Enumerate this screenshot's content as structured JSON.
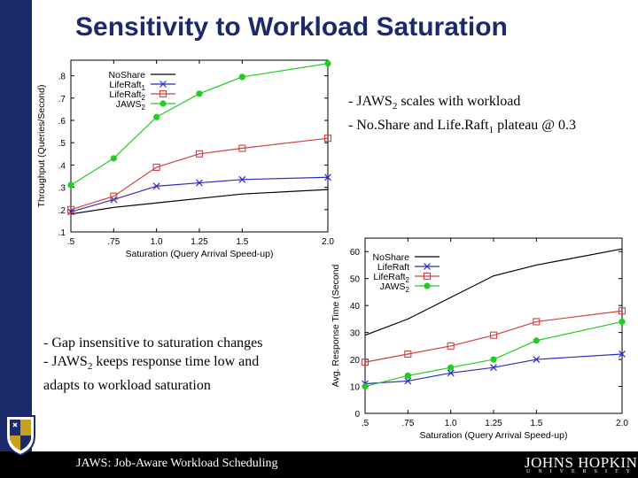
{
  "slide": {
    "title": "Sensitivity to Workload Saturation",
    "footer": "JAWS: Job-Aware Workload Scheduling",
    "logo_main": "JOHNS HOPKINS",
    "logo_sub": "UNIVERSITY",
    "colors": {
      "accent": "#1b2a6b",
      "footer_bg": "#000000"
    }
  },
  "bullets_top": [
    {
      "prefix": "- JAWS",
      "sub": "2",
      "suffix": " scales with workload"
    },
    {
      "prefix": "- No.Share and Life.Raft",
      "sub": "1",
      "suffix": " plateau @ 0.3"
    }
  ],
  "bullets_bottom": [
    {
      "prefix": "- Gap insensitive to saturation changes",
      "sub": "",
      "suffix": ""
    },
    {
      "prefix": "- JAWS",
      "sub": "2",
      "suffix": " keeps response time low and"
    },
    {
      "prefix": "adapts to workload saturation",
      "sub": "",
      "suffix": ""
    }
  ],
  "chart_data": [
    {
      "type": "line",
      "id": "throughput",
      "xlabel": "Saturation (Query Arrival Speed-up)",
      "ylabel": "Throughput (Queries/Second)",
      "x": [
        0.5,
        0.75,
        1.0,
        1.25,
        1.5,
        2.0
      ],
      "x_ticks": [
        0.5,
        0.75,
        1.0,
        1.25,
        1.5,
        2.0
      ],
      "x_tick_labels": [
        ".5",
        ".75",
        "1.0",
        "1.25",
        "1.5",
        "2.0"
      ],
      "y_ticks": [
        0.1,
        0.2,
        0.3,
        0.4,
        0.5,
        0.6,
        0.7,
        0.8
      ],
      "y_tick_labels": [
        ".1",
        ".2",
        ".3",
        ".4",
        ".5",
        ".6",
        ".7",
        ".8"
      ],
      "ylim": [
        0.1,
        0.87
      ],
      "legend": "top-left",
      "series": [
        {
          "name": "NoShare",
          "sub": "",
          "color": "#000000",
          "marker": "none",
          "values": [
            0.18,
            0.21,
            0.23,
            0.25,
            0.27,
            0.29
          ]
        },
        {
          "name": "LifeRaft",
          "sub": "1",
          "color": "#2b2bc0",
          "marker": "x",
          "values": [
            0.19,
            0.245,
            0.305,
            0.32,
            0.335,
            0.345
          ]
        },
        {
          "name": "LifeRaft",
          "sub": "2",
          "color": "#d04040",
          "marker": "square",
          "values": [
            0.2,
            0.26,
            0.39,
            0.45,
            0.475,
            0.52
          ]
        },
        {
          "name": "JAWS",
          "sub": "2",
          "color": "#22cc22",
          "marker": "dot",
          "values": [
            0.31,
            0.43,
            0.615,
            0.72,
            0.795,
            0.855
          ]
        }
      ]
    },
    {
      "type": "line",
      "id": "response",
      "xlabel": "Saturation (Query Arrival Speed-up)",
      "ylabel": "Avg. Response Time (Second",
      "x": [
        0.5,
        0.75,
        1.0,
        1.25,
        1.5,
        2.0
      ],
      "x_ticks": [
        0.5,
        0.75,
        1.0,
        1.25,
        1.5,
        2.0
      ],
      "x_tick_labels": [
        ".5",
        ".75",
        "1.0",
        "1.25",
        "1.5",
        "2.0"
      ],
      "y_ticks": [
        0,
        10,
        20,
        30,
        40,
        50,
        60
      ],
      "y_tick_labels": [
        "0",
        "10",
        "20",
        "30",
        "40",
        "50",
        "60"
      ],
      "ylim": [
        0,
        65
      ],
      "legend": "top-left",
      "series": [
        {
          "name": "NoShare",
          "sub": "",
          "color": "#000000",
          "marker": "none",
          "values": [
            29,
            35,
            43,
            51,
            55,
            61
          ]
        },
        {
          "name": "LifeRaft",
          "sub": "",
          "color": "#2b2bc0",
          "marker": "x",
          "values": [
            11,
            12,
            15,
            17,
            20,
            22
          ]
        },
        {
          "name": "LifeRaft",
          "sub": "2",
          "color": "#d04040",
          "marker": "square",
          "values": [
            19,
            22,
            25,
            29,
            34,
            38
          ]
        },
        {
          "name": "JAWS",
          "sub": "2",
          "color": "#22cc22",
          "marker": "dot",
          "values": [
            10,
            14,
            17,
            20,
            27,
            34
          ]
        }
      ]
    }
  ]
}
